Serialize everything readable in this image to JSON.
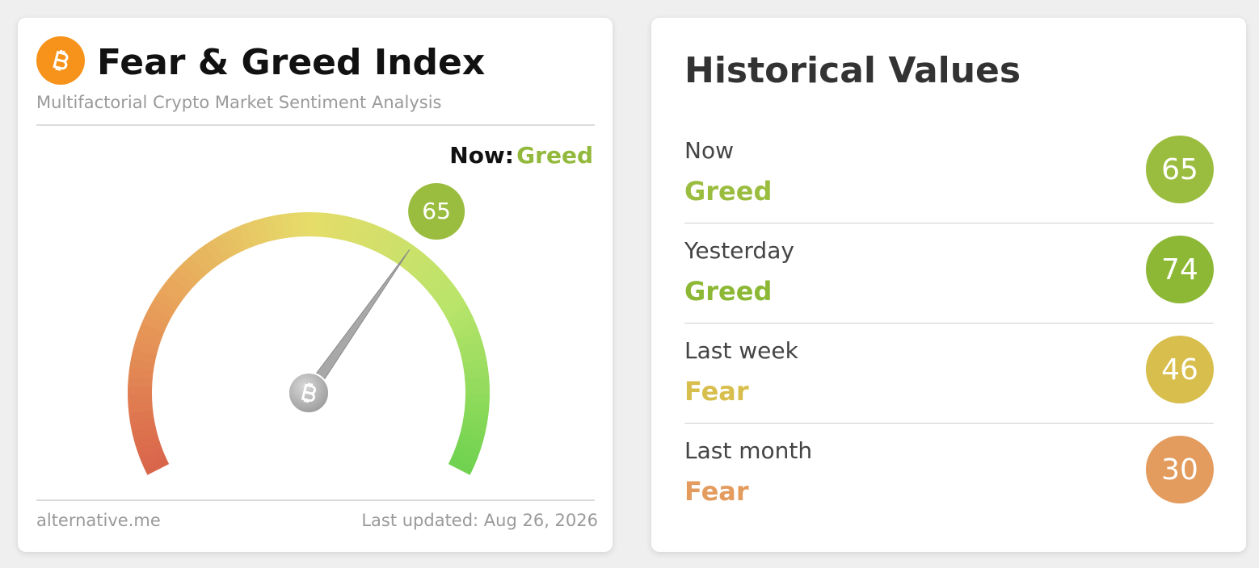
{
  "index_card": {
    "title": "Fear & Greed Index",
    "subtitle": "Multifactorial Crypto Market Sentiment Analysis",
    "now_label": "Now:",
    "now_class": "Greed",
    "now_color": "#93b93c",
    "value": 65,
    "value_color": "#9bbd3f",
    "range": [
      0,
      100
    ],
    "source": "alternative.me",
    "last_updated": "Last updated: Aug 26, 2026"
  },
  "historical": {
    "title": "Historical Values",
    "rows": [
      {
        "period": "Now",
        "class": "Greed",
        "value": 65,
        "color": "#9bbd3f"
      },
      {
        "period": "Yesterday",
        "class": "Greed",
        "value": 74,
        "color": "#8cb835"
      },
      {
        "period": "Last week",
        "class": "Fear",
        "value": 46,
        "color": "#d8be4c"
      },
      {
        "period": "Last month",
        "class": "Fear",
        "value": 30,
        "color": "#e39b5e"
      }
    ]
  }
}
